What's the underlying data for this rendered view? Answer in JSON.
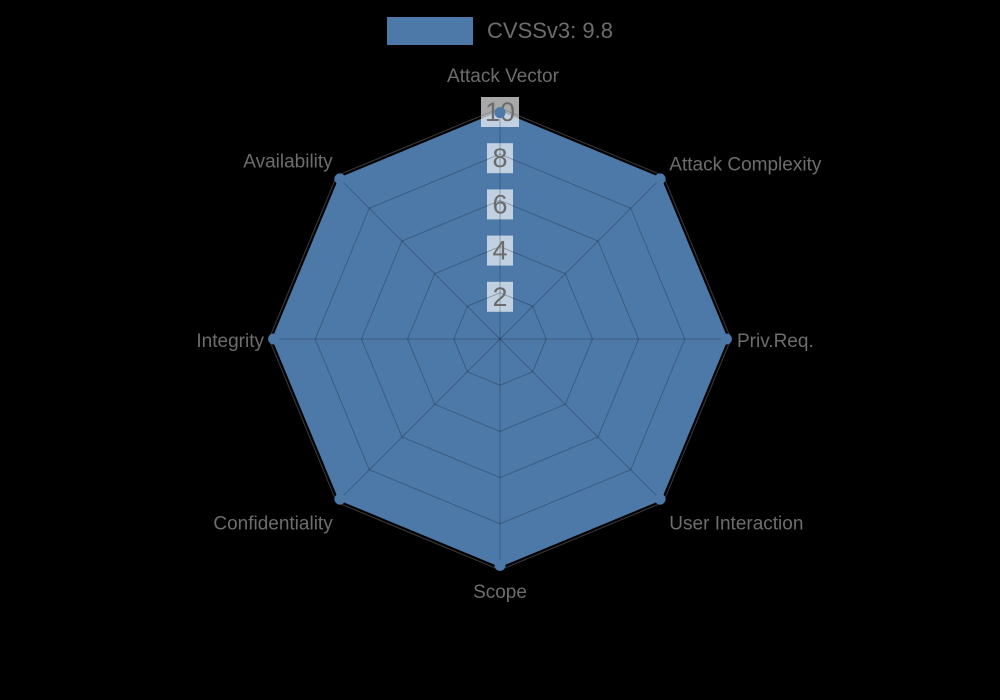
{
  "page": {
    "background": "#000000"
  },
  "legend": {
    "label": "CVSSv3: 9.8",
    "swatch_color": "#4d79a9"
  },
  "chart_data": {
    "type": "radar",
    "title": "",
    "legend_position": "top",
    "grid": true,
    "categories": [
      "Attack Vector",
      "Attack Complexity",
      "Priv.Req.",
      "User Interaction",
      "Scope",
      "Confidentiality",
      "Integrity",
      "Availability"
    ],
    "series": [
      {
        "name": "CVSSv3: 9.8",
        "values": [
          9.8,
          9.8,
          9.8,
          9.8,
          9.8,
          9.8,
          9.8,
          9.8
        ]
      }
    ],
    "ticks": [
      2,
      4,
      6,
      8,
      10
    ],
    "rmax": 10,
    "colors": {
      "fill": "#4d79a9",
      "stroke": "#4d79a9",
      "point": "#4d79a9",
      "grid_under": "#474747",
      "grid_over": "rgba(15,25,40,0.30)",
      "tick_backdrop": "rgba(255,255,255,0.66)",
      "tick_text": "#6b6b6b",
      "label_text": "#6d6d6d"
    }
  }
}
